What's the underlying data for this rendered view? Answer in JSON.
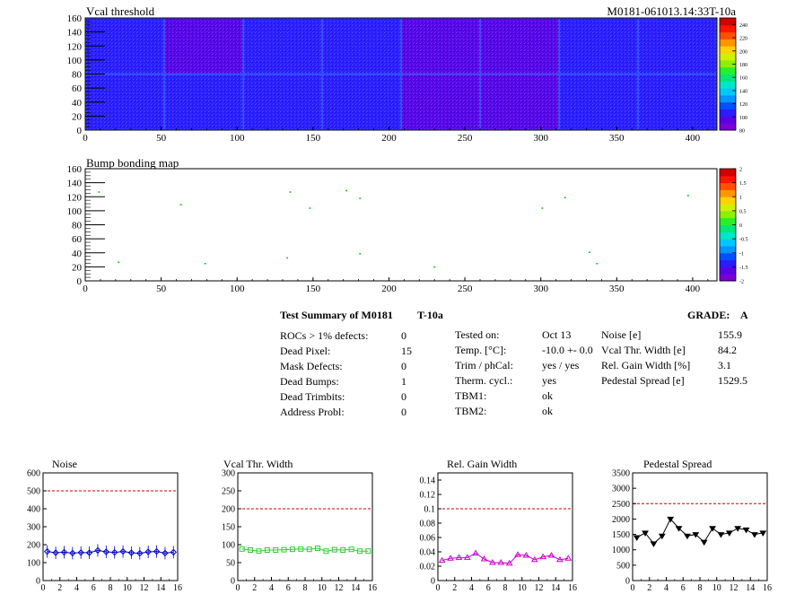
{
  "header": {
    "title": "Vcal threshold",
    "module_id": "M0181-061013.14:33T-10a"
  },
  "bump_title": "Bump bonding map",
  "summary": {
    "title": "Test Summary of M0181",
    "condition": "T-10a",
    "grade_label": "GRADE:",
    "grade_value": "A",
    "col1": [
      {
        "label": "ROCs > 1% defects:",
        "value": "0"
      },
      {
        "label": "Dead Pixel:",
        "value": "15"
      },
      {
        "label": "Mask Defects:",
        "value": "0"
      },
      {
        "label": "Dead Bumps:",
        "value": "1"
      },
      {
        "label": "Dead Trimbits:",
        "value": "0"
      },
      {
        "label": "Address Probl:",
        "value": "0"
      }
    ],
    "col2": [
      {
        "label": "Tested on:",
        "value": "Oct 13"
      },
      {
        "label": "Temp. [°C]:",
        "value": "-10.0 +- 0.0"
      },
      {
        "label": "Trim / phCal:",
        "value": "yes / yes"
      },
      {
        "label": "Therm. cycl.:",
        "value": "yes"
      },
      {
        "label": "TBM1:",
        "value": "ok"
      },
      {
        "label": "TBM2:",
        "value": "ok"
      }
    ],
    "col3": [
      {
        "label": "Noise [e]",
        "value": "155.9"
      },
      {
        "label": "Vcal Thr. Width [e]",
        "value": "84.2"
      },
      {
        "label": "Rel. Gain Width [%]",
        "value": "3.1"
      },
      {
        "label": "Pedestal Spread [e]",
        "value": "1529.5"
      }
    ]
  },
  "colors": {
    "noise": "#0000cc",
    "vcal": "#33cc33",
    "gain": "#cc00cc",
    "pedestal": "#000000",
    "limit": "#cc0000"
  },
  "chart_data": [
    {
      "type": "heatmap",
      "title": "Vcal threshold",
      "x_ticks": [
        "0",
        "50",
        "100",
        "150",
        "200",
        "250",
        "300",
        "350",
        "400"
      ],
      "y_ticks": [
        "0",
        "20",
        "40",
        "60",
        "80",
        "100",
        "120",
        "140",
        "160"
      ],
      "xlim": [
        0,
        416
      ],
      "ylim": [
        0,
        160
      ],
      "color_scale": {
        "ticks": [
          "80",
          "100",
          "120",
          "140",
          "160",
          "180",
          "200",
          "220",
          "240"
        ],
        "range": [
          80,
          250
        ]
      },
      "roc_mean_values": [
        [
          95,
          93,
          96,
          97,
          94,
          92,
          95,
          96
        ],
        [
          96,
          95,
          97,
          99,
          93,
          94,
          96,
          95
        ]
      ]
    },
    {
      "type": "scatter",
      "title": "Bump bonding map",
      "x_ticks": [
        "0",
        "50",
        "100",
        "150",
        "200",
        "250",
        "300",
        "350",
        "400"
      ],
      "y_ticks": [
        "0",
        "20",
        "40",
        "60",
        "80",
        "100",
        "120",
        "140",
        "160"
      ],
      "xlim": [
        0,
        416
      ],
      "ylim": [
        0,
        160
      ],
      "color_scale": {
        "ticks": [
          "-2",
          "-1.5",
          "-1",
          "-0.5",
          "0",
          "0.5",
          "1",
          "1.5",
          "2"
        ],
        "range": [
          -2,
          2
        ]
      },
      "points": [
        {
          "x": 9,
          "y": 127
        },
        {
          "x": 22,
          "y": 27
        },
        {
          "x": 63,
          "y": 109
        },
        {
          "x": 79,
          "y": 25
        },
        {
          "x": 133,
          "y": 33
        },
        {
          "x": 135,
          "y": 127
        },
        {
          "x": 148,
          "y": 104
        },
        {
          "x": 172,
          "y": 129
        },
        {
          "x": 181,
          "y": 118
        },
        {
          "x": 181,
          "y": 39
        },
        {
          "x": 230,
          "y": 20
        },
        {
          "x": 301,
          "y": 104
        },
        {
          "x": 316,
          "y": 119
        },
        {
          "x": 332,
          "y": 41
        },
        {
          "x": 337,
          "y": 25
        },
        {
          "x": 397,
          "y": 122
        }
      ]
    },
    {
      "type": "line",
      "title": "Noise",
      "x": [
        0,
        1,
        2,
        3,
        4,
        5,
        6,
        7,
        8,
        9,
        10,
        11,
        12,
        13,
        14,
        15
      ],
      "values": [
        162,
        155,
        158,
        153,
        156,
        155,
        168,
        160,
        157,
        162,
        155,
        152,
        160,
        162,
        153,
        158
      ],
      "xlim": [
        0,
        16
      ],
      "ylim": [
        0,
        600
      ],
      "x_ticks": [
        "0",
        "2",
        "4",
        "6",
        "8",
        "10",
        "12",
        "14",
        "16"
      ],
      "y_ticks": [
        "0",
        "100",
        "200",
        "300",
        "400",
        "500",
        "600"
      ],
      "limit": 500
    },
    {
      "type": "line",
      "title": "Vcal Thr. Width",
      "x": [
        0,
        1,
        2,
        3,
        4,
        5,
        6,
        7,
        8,
        9,
        10,
        11,
        12,
        13,
        14,
        15
      ],
      "values": [
        88,
        85,
        82,
        85,
        85,
        86,
        87,
        88,
        87,
        90,
        82,
        86,
        85,
        87,
        82,
        82
      ],
      "xlim": [
        0,
        16
      ],
      "ylim": [
        0,
        300
      ],
      "x_ticks": [
        "0",
        "2",
        "4",
        "6",
        "8",
        "10",
        "12",
        "14",
        "16"
      ],
      "y_ticks": [
        "0",
        "50",
        "100",
        "150",
        "200",
        "250",
        "300"
      ],
      "limit": 200
    },
    {
      "type": "line",
      "title": "Rel. Gain Width",
      "x": [
        0,
        1,
        2,
        3,
        4,
        5,
        6,
        7,
        8,
        9,
        10,
        11,
        12,
        13,
        14,
        15
      ],
      "values": [
        0.028,
        0.031,
        0.032,
        0.032,
        0.038,
        0.03,
        0.025,
        0.025,
        0.024,
        0.036,
        0.035,
        0.029,
        0.033,
        0.035,
        0.029,
        0.031
      ],
      "xlim": [
        0,
        16
      ],
      "ylim": [
        0,
        0.15
      ],
      "x_ticks": [
        "0",
        "2",
        "4",
        "6",
        "8",
        "10",
        "12",
        "14",
        "16"
      ],
      "y_ticks": [
        "0",
        "0.02",
        "0.04",
        "0.06",
        "0.08",
        "0.1",
        "0.12",
        "0.14"
      ],
      "limit": 0.1
    },
    {
      "type": "line",
      "title": "Pedestal Spread",
      "x": [
        0,
        1,
        2,
        3,
        4,
        5,
        6,
        7,
        8,
        9,
        10,
        11,
        12,
        13,
        14,
        15
      ],
      "values": [
        1400,
        1550,
        1200,
        1450,
        2000,
        1700,
        1450,
        1500,
        1250,
        1700,
        1500,
        1550,
        1700,
        1650,
        1500,
        1550
      ],
      "xlim": [
        0,
        16
      ],
      "ylim": [
        0,
        3500
      ],
      "x_ticks": [
        "0",
        "2",
        "4",
        "6",
        "8",
        "10",
        "12",
        "14",
        "16"
      ],
      "y_ticks": [
        "0",
        "500",
        "1000",
        "1500",
        "2000",
        "2500",
        "3000",
        "3500"
      ],
      "limit": 2500
    }
  ]
}
